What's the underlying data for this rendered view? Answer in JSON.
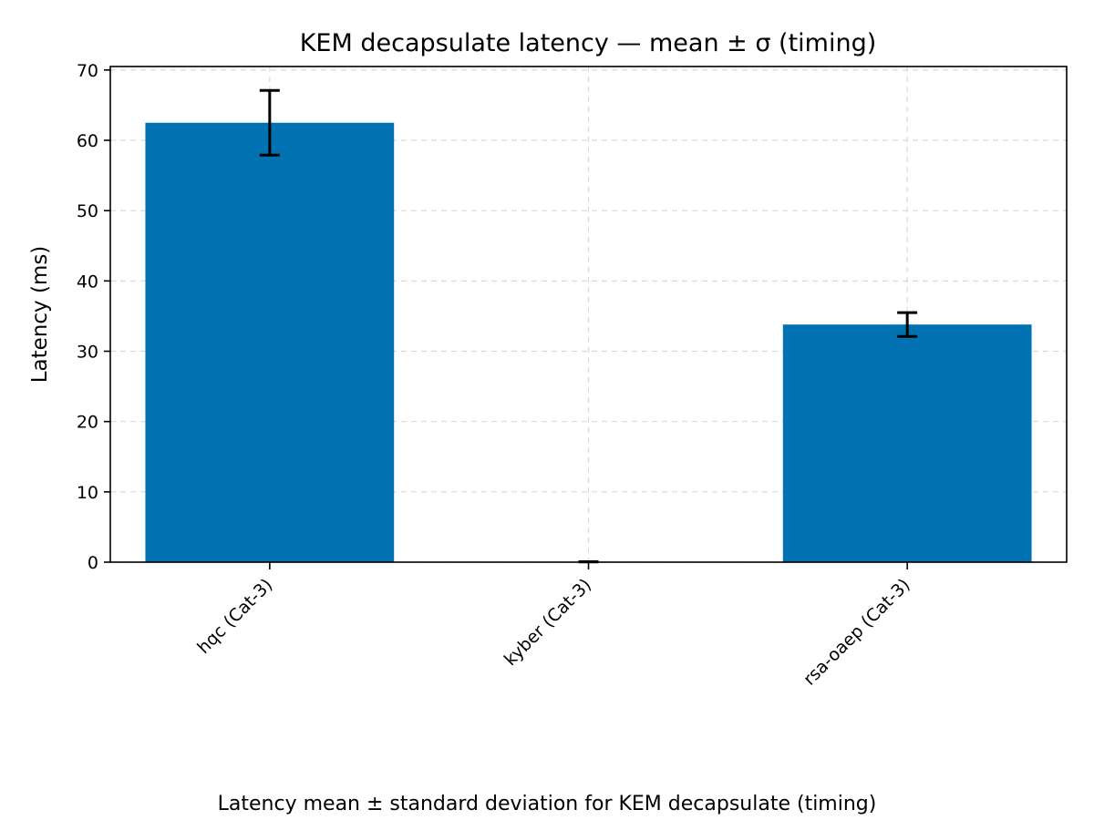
{
  "chart_data": {
    "type": "bar",
    "title": "KEM decapsulate latency — mean ± σ (timing)",
    "xlabel": "",
    "ylabel": "Latency (ms)",
    "caption": "Latency mean ± standard deviation for KEM decapsulate (timing)",
    "categories": [
      "hqc (Cat-3)",
      "kyber (Cat-3)",
      "rsa-oaep (Cat-3)"
    ],
    "values": [
      62.5,
      0.05,
      33.8
    ],
    "errors": [
      4.6,
      0.02,
      1.7
    ],
    "ylim": [
      0,
      70.5
    ],
    "yticks": [
      0,
      10,
      20,
      30,
      40,
      50,
      60,
      70
    ],
    "grid": true,
    "bar_color": "#0072b2"
  }
}
